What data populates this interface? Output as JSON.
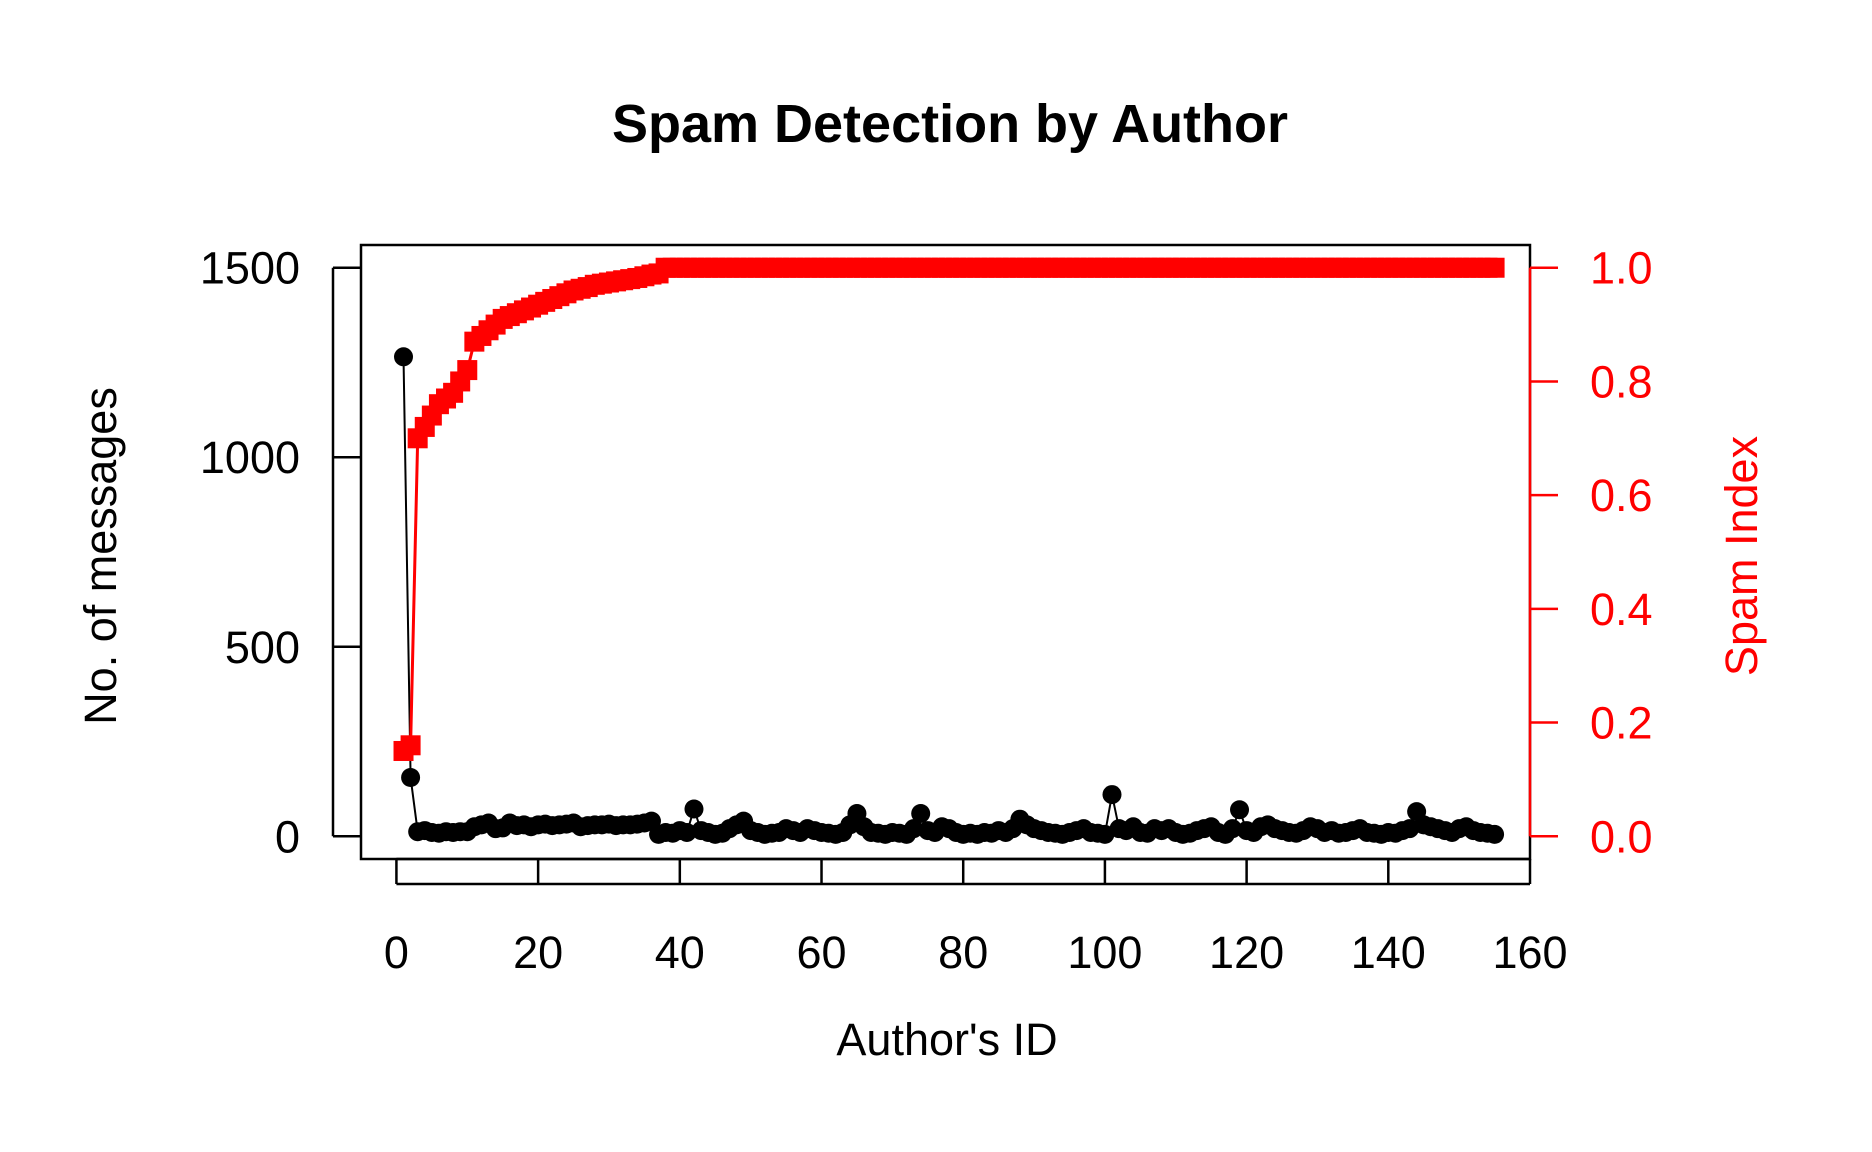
{
  "chart_data": {
    "type": "scatter",
    "title": "Spam Detection by Author",
    "xlabel": "Author's ID",
    "ylabel": "No. of messages",
    "y2label": "Spam Index",
    "xlim": [
      -5,
      160
    ],
    "ylim": [
      -60,
      1560
    ],
    "y2lim": [
      -0.04,
      1.04
    ],
    "xticks": [
      "0",
      "20",
      "40",
      "60",
      "80",
      "100",
      "120",
      "140",
      "160"
    ],
    "yticks": [
      "0",
      "500",
      "1000",
      "1500"
    ],
    "y2ticks": [
      "0.0",
      "0.2",
      "0.4",
      "0.6",
      "0.8",
      "1.0"
    ],
    "colors": {
      "messages": "#000000",
      "spam_index": "#ff0000"
    },
    "series": [
      {
        "axis": "left",
        "color": "#000000",
        "marker": "circle",
        "x": [
          1,
          2,
          3,
          4,
          5,
          6,
          7,
          8,
          9,
          10,
          11,
          12,
          13,
          14,
          15,
          16,
          17,
          18,
          19,
          20,
          21,
          22,
          23,
          24,
          25,
          26,
          27,
          28,
          29,
          30,
          31,
          32,
          33,
          34,
          35,
          36,
          37,
          38,
          39,
          40,
          41,
          42,
          43,
          44,
          45,
          46,
          47,
          48,
          49,
          50,
          51,
          52,
          53,
          54,
          55,
          56,
          57,
          58,
          59,
          60,
          61,
          62,
          63,
          64,
          65,
          66,
          67,
          68,
          69,
          70,
          71,
          72,
          73,
          74,
          75,
          76,
          77,
          78,
          79,
          80,
          81,
          82,
          83,
          84,
          85,
          86,
          87,
          88,
          89,
          90,
          91,
          92,
          93,
          94,
          95,
          96,
          97,
          98,
          99,
          100,
          101,
          102,
          103,
          104,
          105,
          106,
          107,
          108,
          109,
          110,
          111,
          112,
          113,
          114,
          115,
          116,
          117,
          118,
          119,
          120,
          121,
          122,
          123,
          124,
          125,
          126,
          127,
          128,
          129,
          130,
          131,
          132,
          133,
          134,
          135,
          136,
          137,
          138,
          139,
          140,
          141,
          142,
          143,
          144,
          145,
          146,
          147,
          148,
          149,
          150,
          151,
          152,
          153,
          154,
          155
        ],
        "values": [
          1265,
          155,
          12,
          15,
          10,
          8,
          12,
          10,
          12,
          12,
          25,
          30,
          35,
          20,
          22,
          35,
          28,
          30,
          25,
          30,
          32,
          28,
          30,
          32,
          35,
          25,
          28,
          30,
          30,
          32,
          28,
          30,
          30,
          32,
          35,
          40,
          5,
          10,
          8,
          15,
          10,
          72,
          15,
          10,
          5,
          8,
          20,
          30,
          40,
          15,
          10,
          5,
          8,
          10,
          20,
          15,
          10,
          20,
          15,
          10,
          8,
          5,
          10,
          30,
          60,
          25,
          10,
          8,
          5,
          10,
          8,
          5,
          20,
          60,
          15,
          10,
          25,
          20,
          10,
          5,
          8,
          5,
          10,
          8,
          15,
          10,
          20,
          45,
          30,
          20,
          15,
          10,
          8,
          5,
          10,
          15,
          20,
          10,
          8,
          5,
          110,
          20,
          15,
          25,
          10,
          8,
          20,
          15,
          20,
          10,
          5,
          8,
          15,
          20,
          25,
          10,
          5,
          20,
          70,
          15,
          10,
          25,
          30,
          20,
          15,
          10,
          8,
          15,
          25,
          20,
          10,
          15,
          8,
          10,
          15,
          20,
          10,
          8,
          5,
          10,
          8,
          15,
          20,
          65,
          30,
          25,
          20,
          15,
          10,
          20,
          25,
          15,
          10,
          8,
          5
        ]
      },
      {
        "axis": "right",
        "color": "#ff0000",
        "marker": "square",
        "x": [
          1,
          2,
          3,
          4,
          5,
          6,
          7,
          8,
          9,
          10,
          11,
          12,
          13,
          14,
          15,
          16,
          17,
          18,
          19,
          20,
          21,
          22,
          23,
          24,
          25,
          26,
          27,
          28,
          29,
          30,
          31,
          32,
          33,
          34,
          35,
          36,
          37,
          38,
          39,
          40,
          41,
          42,
          43,
          44,
          45,
          46,
          47,
          48,
          49,
          50,
          51,
          52,
          53,
          54,
          55,
          56,
          57,
          58,
          59,
          60,
          61,
          62,
          63,
          64,
          65,
          66,
          67,
          68,
          69,
          70,
          71,
          72,
          73,
          74,
          75,
          76,
          77,
          78,
          79,
          80,
          81,
          82,
          83,
          84,
          85,
          86,
          87,
          88,
          89,
          90,
          91,
          92,
          93,
          94,
          95,
          96,
          97,
          98,
          99,
          100,
          101,
          102,
          103,
          104,
          105,
          106,
          107,
          108,
          109,
          110,
          111,
          112,
          113,
          114,
          115,
          116,
          117,
          118,
          119,
          120,
          121,
          122,
          123,
          124,
          125,
          126,
          127,
          128,
          129,
          130,
          131,
          132,
          133,
          134,
          135,
          136,
          137,
          138,
          139,
          140,
          141,
          142,
          143,
          144,
          145,
          146,
          147,
          148,
          149,
          150,
          151,
          152,
          153,
          154,
          155
        ],
        "values": [
          0.15,
          0.16,
          0.7,
          0.72,
          0.74,
          0.76,
          0.77,
          0.78,
          0.8,
          0.82,
          0.87,
          0.88,
          0.89,
          0.9,
          0.91,
          0.915,
          0.92,
          0.925,
          0.93,
          0.935,
          0.94,
          0.945,
          0.95,
          0.955,
          0.96,
          0.963,
          0.966,
          0.97,
          0.972,
          0.974,
          0.976,
          0.978,
          0.98,
          0.982,
          0.985,
          0.988,
          0.99,
          1,
          1,
          1,
          1,
          1,
          1,
          1,
          1,
          1,
          1,
          1,
          1,
          1,
          1,
          1,
          1,
          1,
          1,
          1,
          1,
          1,
          1,
          1,
          1,
          1,
          1,
          1,
          1,
          1,
          1,
          1,
          1,
          1,
          1,
          1,
          1,
          1,
          1,
          1,
          1,
          1,
          1,
          1,
          1,
          1,
          1,
          1,
          1,
          1,
          1,
          1,
          1,
          1,
          1,
          1,
          1,
          1,
          1,
          1,
          1,
          1,
          1,
          1,
          1,
          1,
          1,
          1,
          1,
          1,
          1,
          1,
          1,
          1,
          1,
          1,
          1,
          1,
          1,
          1,
          1,
          1,
          1,
          1,
          1,
          1,
          1,
          1,
          1,
          1,
          1,
          1,
          1,
          1,
          1,
          1,
          1,
          1,
          1,
          1,
          1,
          1,
          1,
          1,
          1,
          1,
          1,
          1,
          1,
          1,
          1,
          1,
          1,
          1,
          1,
          1,
          1,
          1,
          1
        ]
      }
    ],
    "grid": false,
    "legend": "none"
  }
}
